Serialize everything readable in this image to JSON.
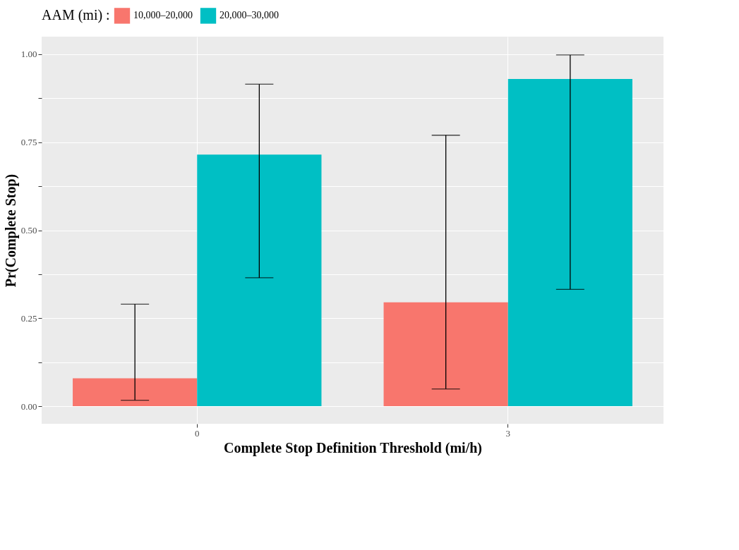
{
  "chart_data": {
    "type": "bar",
    "xlabel": "Complete Stop Definition Threshold (mi/h)",
    "ylabel": "Pr(Complete Stop)",
    "legend_title": "AAM (mi) :",
    "categories": [
      "0",
      "3"
    ],
    "series": [
      {
        "name": "10,000–20,000",
        "color": "#f8766d",
        "values": [
          0.079,
          0.295
        ],
        "errors": [
          [
            0.017,
            0.29
          ],
          [
            0.049,
            0.77
          ]
        ]
      },
      {
        "name": "20,000–30,000",
        "color": "#00bfc4",
        "values": [
          0.715,
          0.93
        ],
        "errors": [
          [
            0.365,
            0.915
          ],
          [
            0.332,
            0.998
          ]
        ]
      }
    ],
    "ylim": [
      -0.05,
      1.05
    ],
    "yticks": [
      {
        "value": 0,
        "label": "0.00"
      },
      {
        "value": 0.125,
        "label": null
      },
      {
        "value": 0.25,
        "label": "0.25"
      },
      {
        "value": 0.375,
        "label": null
      },
      {
        "value": 0.5,
        "label": "0.50"
      },
      {
        "value": 0.625,
        "label": null
      },
      {
        "value": 0.75,
        "label": "0.75"
      },
      {
        "value": 0.875,
        "label": null
      },
      {
        "value": 1,
        "label": "1.00"
      }
    ],
    "grid": true,
    "legend": "top"
  }
}
